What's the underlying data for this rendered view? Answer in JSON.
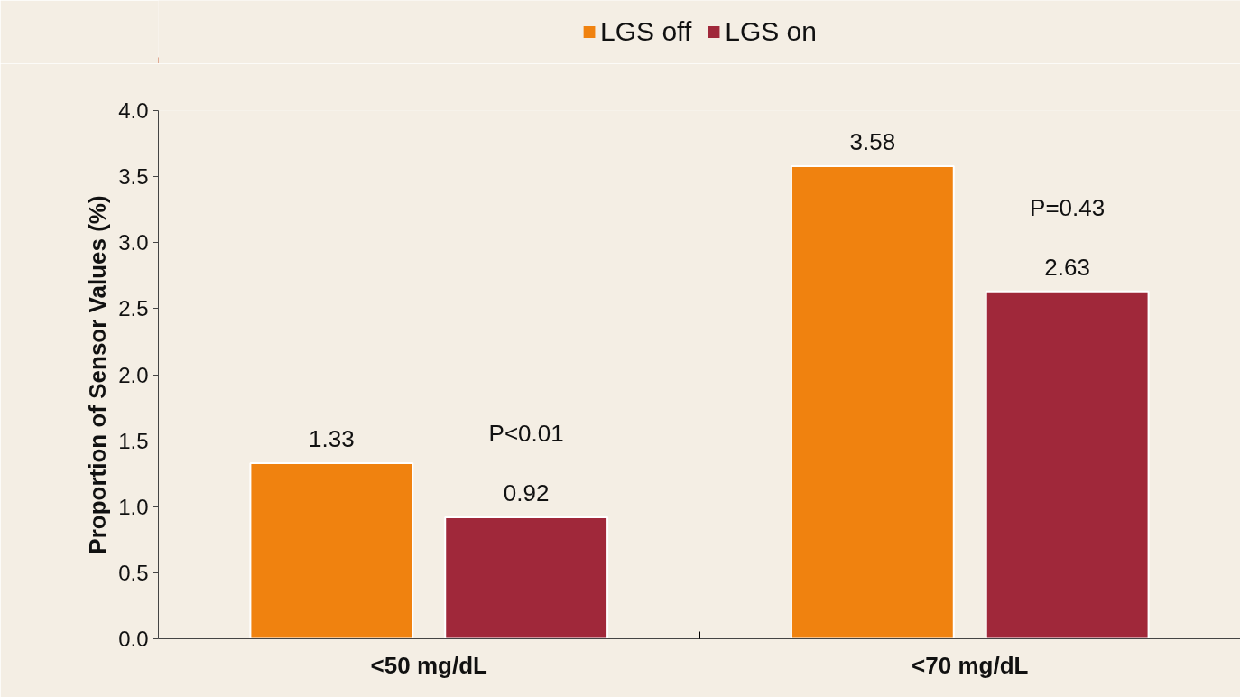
{
  "chart_data": {
    "type": "bar",
    "ylabel": "Proportion of Sensor Values (%)",
    "categories": [
      "<50 mg/dL",
      "<70 mg/dL"
    ],
    "series": [
      {
        "name": "LGS off",
        "color": "#f0820f",
        "values": [
          1.33,
          3.58
        ]
      },
      {
        "name": "LGS on",
        "color": "#a0283a",
        "values": [
          0.92,
          2.63
        ]
      }
    ],
    "ylim": [
      0,
      4.0
    ],
    "yticks": [
      {
        "value": 0,
        "label": "0.0"
      },
      0.5,
      {
        "value": 1,
        "label": "1.0"
      },
      1.5,
      {
        "value": 2,
        "label": "2.0"
      },
      2.5,
      {
        "value": 3,
        "label": "3.0"
      },
      3.5,
      {
        "value": 4,
        "label": "4.0"
      }
    ],
    "data_labels": true,
    "grid": false,
    "legend": "top",
    "annotations": [
      "P<0.01",
      "P=0.43"
    ]
  }
}
